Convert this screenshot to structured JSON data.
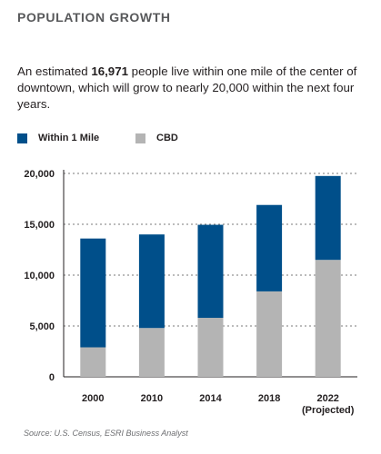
{
  "heading": "POPULATION GROWTH",
  "intro": {
    "before": "An estimated ",
    "highlight": "16,971",
    "after": " people live within one mile of the center of downtown, which will grow to nearly 20,000 within the next four years."
  },
  "source": "Source: U.S. Census, ESRI Business Analyst",
  "colors": {
    "within": "#004f8a",
    "cbd": "#b4b4b4",
    "grid": "#7a7a7a",
    "axis": "#231f20"
  },
  "chart_data": {
    "type": "bar",
    "stacked": true,
    "categories": [
      "2000",
      "2010",
      "2014",
      "2018",
      "2022\n(Projected)"
    ],
    "series": [
      {
        "name": "CBD",
        "values": [
          2900,
          4800,
          5800,
          8400,
          11500
        ]
      },
      {
        "name": "Within 1 Mile",
        "values": [
          10700,
          9200,
          9150,
          8500,
          8250
        ]
      }
    ],
    "totals": [
      13600,
      14000,
      14950,
      16900,
      19750
    ],
    "ylim": [
      0,
      20000
    ],
    "yticks": [
      0,
      5000,
      10000,
      15000,
      20000
    ],
    "ytick_labels": [
      "0",
      "5,000",
      "10,000",
      "15,000",
      "20,000"
    ],
    "grid": true,
    "legend_position": "top-left"
  }
}
